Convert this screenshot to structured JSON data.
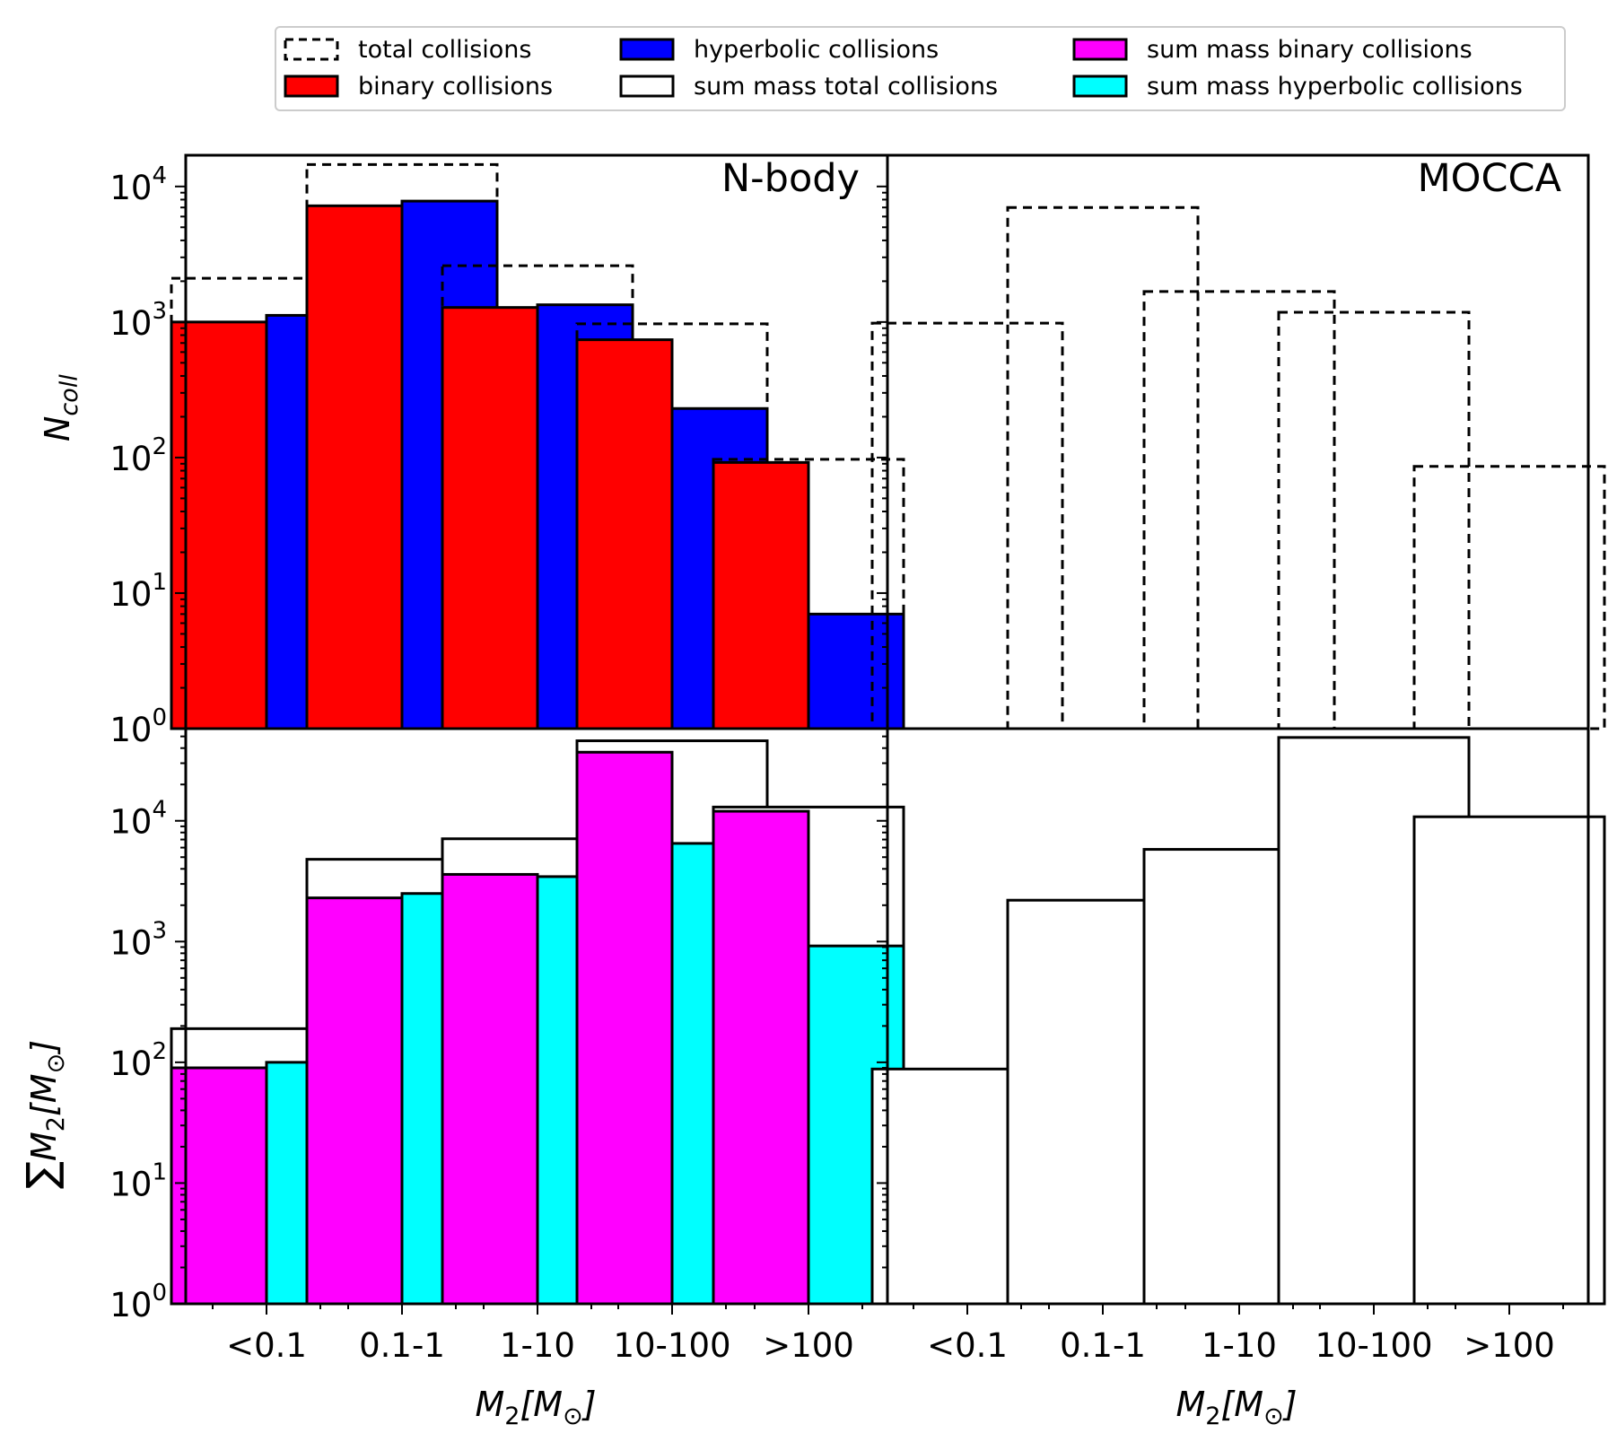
{
  "colors": {
    "binary": "#ff0000",
    "hyperbolic": "#0000ff",
    "mass_binary": "#ff00ff",
    "mass_hyperbolic": "#00ffff",
    "outline": "#000000"
  },
  "legend": {
    "entries": [
      {
        "label": "total collisions",
        "style": "dashed"
      },
      {
        "label": "binary collisions",
        "style": "red"
      },
      {
        "label": "hyperbolic collisions",
        "style": "blue"
      },
      {
        "label": "sum mass total collisions",
        "style": "open"
      },
      {
        "label": "sum mass binary collisions",
        "style": "magenta"
      },
      {
        "label": "sum mass hyperbolic collisions",
        "style": "cyan"
      }
    ]
  },
  "axes": {
    "y_top_label_main": "N",
    "y_top_label_sub": "coll",
    "y_bottom_label_sum": "∑",
    "y_bottom_label_main": "M",
    "y_bottom_label_sub": "2",
    "y_bottom_label_unit": "[M",
    "y_bottom_label_unit_sub": "⊙",
    "y_bottom_label_close": "]",
    "x_label_main": "M",
    "x_label_sub": "2",
    "x_label_unit": "[M",
    "x_label_unit_sub": "⊙",
    "x_label_close": "]",
    "y_ticks": [
      {
        "base": "10",
        "exp": "0"
      },
      {
        "base": "10",
        "exp": "1"
      },
      {
        "base": "10",
        "exp": "2"
      },
      {
        "base": "10",
        "exp": "3"
      },
      {
        "base": "10",
        "exp": "4"
      }
    ]
  },
  "chart_data": [
    {
      "type": "bar",
      "title": "N-body",
      "panel": "top-left",
      "yscale": "log",
      "ylim": [
        1,
        17000
      ],
      "categories": [
        "<0.1",
        "0.1-1",
        "1-10",
        "10-100",
        ">100"
      ],
      "series": [
        {
          "name": "total collisions",
          "values": [
            2100,
            14500,
            2600,
            970,
            97
          ]
        },
        {
          "name": "binary collisions",
          "values": [
            1000,
            7200,
            1280,
            740,
            92
          ]
        },
        {
          "name": "hyperbolic collisions",
          "values": [
            1120,
            7800,
            1340,
            230,
            7
          ]
        }
      ]
    },
    {
      "type": "bar",
      "title": "MOCCA",
      "panel": "top-right",
      "yscale": "log",
      "ylim": [
        1,
        17000
      ],
      "categories": [
        "<0.1",
        "0.1-1",
        "1-10",
        "10-100",
        ">100"
      ],
      "series": [
        {
          "name": "total collisions",
          "values": [
            980,
            7000,
            1680,
            1180,
            86
          ]
        }
      ]
    },
    {
      "type": "bar",
      "title": "",
      "panel": "bottom-left",
      "yscale": "log",
      "ylim": [
        1,
        58000
      ],
      "categories": [
        "<0.1",
        "0.1-1",
        "1-10",
        "10-100",
        ">100"
      ],
      "series": [
        {
          "name": "sum mass total collisions",
          "values": [
            190,
            4800,
            7100,
            46000,
            13000
          ]
        },
        {
          "name": "sum mass binary collisions",
          "values": [
            90,
            2300,
            3600,
            37000,
            12000
          ]
        },
        {
          "name": "sum mass hyperbolic collisions",
          "values": [
            100,
            2500,
            3450,
            6500,
            920
          ]
        }
      ]
    },
    {
      "type": "bar",
      "title": "",
      "panel": "bottom-right",
      "yscale": "log",
      "ylim": [
        1,
        58000
      ],
      "categories": [
        "<0.1",
        "0.1-1",
        "1-10",
        "10-100",
        ">100"
      ],
      "series": [
        {
          "name": "sum mass total collisions",
          "values": [
            88,
            2200,
            5800,
            49000,
            10800
          ]
        }
      ]
    }
  ]
}
